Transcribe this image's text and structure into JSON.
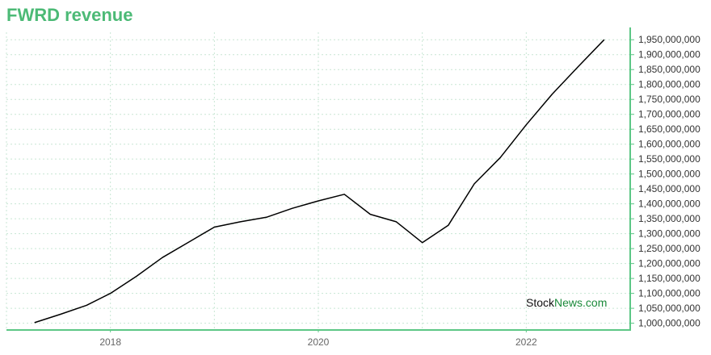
{
  "title": "FWRD revenue",
  "watermark": {
    "part1": "Stock",
    "part2": "News",
    "part3": ".com"
  },
  "colors": {
    "title": "#4cba76",
    "axis": "#5cc785",
    "grid": "#c8e6d4",
    "line": "#000000",
    "watermark_dark": "#111111",
    "watermark_green": "#1a8a3a"
  },
  "chart_data": {
    "type": "line",
    "title": "FWRD revenue",
    "xlabel": "",
    "ylabel": "",
    "y_axis_position": "right",
    "grid": true,
    "xlim": [
      2017.0,
      2023.0
    ],
    "ylim": [
      980000000,
      1975000000
    ],
    "x_ticks": [
      2018,
      2020,
      2022
    ],
    "x_tick_labels": [
      "2018",
      "2020",
      "2022"
    ],
    "y_ticks": [
      1000000000,
      1050000000,
      1100000000,
      1150000000,
      1200000000,
      1250000000,
      1300000000,
      1350000000,
      1400000000,
      1450000000,
      1500000000,
      1550000000,
      1600000000,
      1650000000,
      1700000000,
      1750000000,
      1800000000,
      1850000000,
      1900000000,
      1950000000
    ],
    "y_tick_labels": [
      "1,000,000,000",
      "1,050,000,000",
      "1,100,000,000",
      "1,150,000,000",
      "1,200,000,000",
      "1,250,000,000",
      "1,300,000,000",
      "1,350,000,000",
      "1,400,000,000",
      "1,450,000,000",
      "1,500,000,000",
      "1,550,000,000",
      "1,600,000,000",
      "1,650,000,000",
      "1,700,000,000",
      "1,750,000,000",
      "1,800,000,000",
      "1,850,000,000",
      "1,900,000,000",
      "1,950,000,000"
    ],
    "series": [
      {
        "name": "",
        "x": [
          2017.27,
          2017.52,
          2017.77,
          2018.0,
          2018.25,
          2018.5,
          2018.77,
          2019.0,
          2019.25,
          2019.5,
          2019.75,
          2020.0,
          2020.25,
          2020.5,
          2020.75,
          2021.0,
          2021.25,
          2021.5,
          2021.75,
          2022.0,
          2022.25,
          2022.5,
          2022.75
        ],
        "y": [
          1002000000,
          1030000000,
          1060000000,
          1100000000,
          1157000000,
          1220000000,
          1275000000,
          1322000000,
          1340000000,
          1355000000,
          1385000000,
          1410000000,
          1432000000,
          1365000000,
          1340000000,
          1270000000,
          1328000000,
          1467000000,
          1555000000,
          1665000000,
          1768000000,
          1860000000,
          1950000000
        ]
      }
    ]
  }
}
